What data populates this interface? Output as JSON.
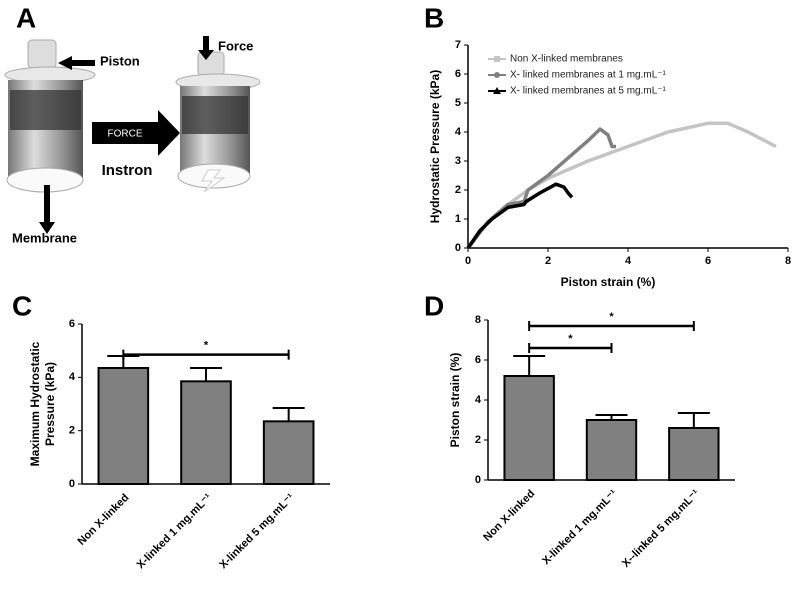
{
  "panel_labels": [
    "A",
    "B",
    "C",
    "D"
  ],
  "diagram": {
    "piston": "Piston",
    "force": "Force",
    "arrow": "FORCE",
    "instron": "Instron",
    "membrane": "Membrane"
  },
  "chart_data": [
    {
      "type": "line",
      "xlabel": "Piston strain (%)",
      "ylabel": "Hydrostatic Pressure (kPa)",
      "xlim": [
        0,
        8
      ],
      "xticks": [
        0,
        2,
        4,
        6,
        8
      ],
      "ylim": [
        0,
        7
      ],
      "yticks": [
        0,
        1,
        2,
        3,
        4,
        5,
        6,
        7
      ],
      "legend": "upper left",
      "series": [
        {
          "name": "Non X-linked membranes",
          "color": "#c4c4c4",
          "marker": "square",
          "x": [
            0,
            0.5,
            1,
            1.5,
            2,
            3,
            4,
            5,
            6,
            6.5,
            7,
            7.7
          ],
          "values": [
            0,
            0.9,
            1.5,
            2.0,
            2.4,
            3.0,
            3.5,
            4.0,
            4.3,
            4.3,
            4.0,
            3.5
          ]
        },
        {
          "name": "X- linked membranes at 1 mg.mL⁻¹",
          "color": "#808080",
          "marker": "circle",
          "x": [
            0,
            0.5,
            1,
            1.4,
            1.5,
            2,
            2.5,
            3,
            3.3,
            3.5,
            3.6,
            3.7
          ],
          "values": [
            0,
            0.9,
            1.5,
            1.6,
            2.0,
            2.5,
            3.1,
            3.7,
            4.1,
            3.9,
            3.5,
            3.5
          ]
        },
        {
          "name": "X- linked membranes at 5 mg.mL⁻¹",
          "color": "#000000",
          "marker": "triangle",
          "x": [
            0,
            0.3,
            0.6,
            1,
            1.4,
            1.45,
            1.8,
            2.2,
            2.4,
            2.5,
            2.6
          ],
          "values": [
            0,
            0.6,
            1.0,
            1.4,
            1.5,
            1.6,
            1.9,
            2.2,
            2.1,
            1.9,
            1.75
          ]
        }
      ]
    },
    {
      "type": "bar",
      "ylabel": "Maximum Hydrostatic Pressure (kPa)",
      "color": "#808080",
      "categories": [
        "Non X-linked",
        "X-linked 1 mg.mL⁻¹",
        "X-linked 5 mg.mL⁻¹"
      ],
      "values": [
        4.35,
        3.85,
        2.35
      ],
      "errors": [
        0.45,
        0.5,
        0.5
      ],
      "ylim": [
        0,
        6
      ],
      "yticks": [
        0,
        2,
        4,
        6
      ],
      "annotations": [
        {
          "text": "*",
          "between": [
            0,
            2
          ],
          "y": 4.85
        }
      ]
    },
    {
      "type": "bar",
      "ylabel": "Piston strain (%)",
      "color": "#808080",
      "categories": [
        "Non X-linked",
        "X-linked 1 mg.mL⁻¹",
        "X--linked 5 mg.mL⁻¹"
      ],
      "values": [
        5.2,
        3.0,
        2.6
      ],
      "errors": [
        1.0,
        0.25,
        0.75
      ],
      "ylim": [
        0,
        8
      ],
      "yticks": [
        0,
        2,
        4,
        6,
        8
      ],
      "annotations": [
        {
          "text": "*",
          "between": [
            0,
            1
          ],
          "y": 6.6
        },
        {
          "text": "*",
          "between": [
            0,
            2
          ],
          "y": 7.7
        }
      ]
    }
  ]
}
